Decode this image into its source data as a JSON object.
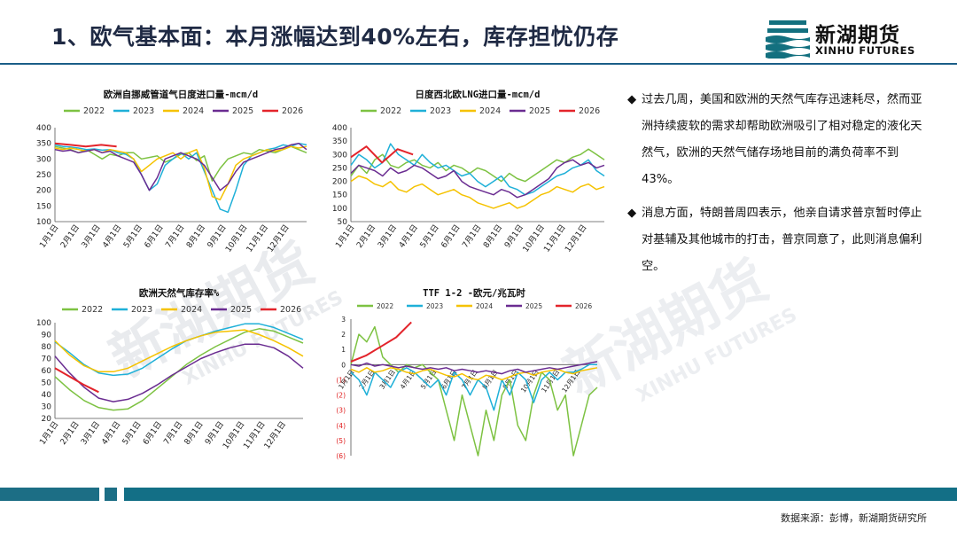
{
  "header": {
    "title": "1、欧气基本面：本月涨幅达到40%左右，库存担忧仍存"
  },
  "logo": {
    "name": "新湖期货",
    "en": "XINHU FUTURES"
  },
  "watermark": {
    "cn": "新湖期货",
    "en": "XINHU FUTURES"
  },
  "side_text": [
    "过去几周，美国和欧洲的天然气库存迅速耗尽，然而亚洲持续疲软的需求却帮助欧洲吸引了相对稳定的液化天然气，欧洲的天然气储存场地目前的满负荷率不到43%。",
    "消息方面，特朗普周四表示，他亲自请求普京暂时停止对基辅及其他城市的打击，普京同意了，此则消息偏利空。"
  ],
  "footer": {
    "source": "数据来源：彭博，新湖期货研究所"
  },
  "colors": {
    "2022": "#7dc242",
    "2023": "#1fb0d8",
    "2024": "#f5c200",
    "2025": "#6a2c91",
    "2026": "#e3242b"
  },
  "chart_data": [
    {
      "type": "line",
      "title": "欧洲自挪威管道气日度进口量-mcm/d",
      "legend": [
        "2022",
        "2023",
        "2024",
        "2025",
        "2026"
      ],
      "xticks": [
        "1月1日",
        "2月1日",
        "3月1日",
        "4月1日",
        "5月1日",
        "6月1日",
        "7月1日",
        "8月1日",
        "9月1日",
        "10月1日",
        "11月1日",
        "12月1日"
      ],
      "yticks": [
        "100",
        "150",
        "200",
        "250",
        "300",
        "350",
        "400"
      ],
      "ylim": [
        100,
        400
      ],
      "series": [
        {
          "name": "2022",
          "values": [
            340,
            335,
            330,
            320,
            330,
            315,
            300,
            315,
            310,
            320,
            320,
            300,
            305,
            310,
            290,
            300,
            315,
            320,
            295,
            310,
            230,
            270,
            300,
            310,
            320,
            315,
            330,
            325,
            320,
            330,
            340,
            330,
            320
          ]
        },
        {
          "name": "2023",
          "values": [
            345,
            340,
            338,
            335,
            330,
            332,
            328,
            330,
            320,
            315,
            300,
            250,
            200,
            220,
            280,
            300,
            320,
            300,
            320,
            260,
            200,
            140,
            130,
            200,
            280,
            310,
            320,
            330,
            335,
            345,
            340,
            350,
            345
          ]
        },
        {
          "name": "2024",
          "values": [
            335,
            330,
            335,
            330,
            325,
            330,
            320,
            330,
            325,
            320,
            300,
            260,
            280,
            300,
            310,
            320,
            300,
            320,
            330,
            270,
            180,
            170,
            220,
            280,
            300,
            310,
            320,
            330,
            325,
            330,
            340,
            335,
            340
          ]
        },
        {
          "name": "2025",
          "values": [
            330,
            325,
            328,
            320,
            325,
            330,
            320,
            325,
            310,
            300,
            290,
            250,
            200,
            240,
            300,
            310,
            320,
            310,
            300,
            280,
            240,
            200,
            220,
            260,
            290,
            300,
            310,
            320,
            330,
            335,
            345,
            350,
            330
          ]
        },
        {
          "name": "2026",
          "values": [
            350,
            345,
            340,
            345,
            340
          ]
        }
      ]
    },
    {
      "type": "line",
      "title": "日度西北欧LNG进口量-mcm/d",
      "legend": [
        "2022",
        "2023",
        "2024",
        "2025",
        "2026"
      ],
      "xticks": [
        "1月1日",
        "2月1日",
        "3月1日",
        "4月1日",
        "5月1日",
        "6月1日",
        "7月1日",
        "8月1日",
        "9月1日",
        "10月1日",
        "11月1日",
        "12月1日"
      ],
      "yticks": [
        "50",
        "100",
        "150",
        "200",
        "250",
        "300",
        "350",
        "400"
      ],
      "ylim": [
        50,
        400
      ],
      "series": [
        {
          "name": "2022",
          "values": [
            220,
            260,
            230,
            280,
            300,
            260,
            250,
            270,
            280,
            260,
            250,
            270,
            240,
            260,
            250,
            230,
            250,
            240,
            220,
            200,
            230,
            210,
            200,
            220,
            240,
            260,
            280,
            270,
            290,
            300,
            320,
            300,
            280
          ]
        },
        {
          "name": "2023",
          "values": [
            260,
            300,
            280,
            250,
            270,
            340,
            300,
            280,
            260,
            300,
            270,
            250,
            260,
            240,
            220,
            230,
            200,
            180,
            200,
            220,
            180,
            170,
            150,
            160,
            180,
            200,
            220,
            230,
            250,
            260,
            280,
            240,
            220
          ]
        },
        {
          "name": "2024",
          "values": [
            200,
            220,
            210,
            190,
            180,
            200,
            170,
            160,
            180,
            190,
            170,
            150,
            160,
            170,
            150,
            140,
            120,
            110,
            100,
            110,
            120,
            100,
            110,
            130,
            150,
            160,
            180,
            170,
            160,
            180,
            190,
            170,
            180
          ]
        },
        {
          "name": "2025",
          "values": [
            230,
            260,
            250,
            240,
            220,
            250,
            230,
            240,
            260,
            250,
            230,
            210,
            220,
            240,
            200,
            180,
            170,
            160,
            150,
            170,
            160,
            140,
            150,
            170,
            190,
            210,
            250,
            270,
            280,
            260,
            270,
            250,
            260
          ]
        },
        {
          "name": "2026",
          "values": [
            290,
            330,
            270,
            320,
            300
          ]
        }
      ]
    },
    {
      "type": "line",
      "title": "欧洲天然气库存率%",
      "legend": [
        "2022",
        "2023",
        "2024",
        "2025",
        "2026"
      ],
      "xticks": [
        "1月1日",
        "2月1日",
        "3月1日",
        "4月1日",
        "5月1日",
        "6月1日",
        "7月1日",
        "8月1日",
        "9月1日",
        "10月1日",
        "11月1日",
        "12月1日"
      ],
      "yticks": [
        "20",
        "30",
        "40",
        "50",
        "60",
        "70",
        "80",
        "90",
        "100"
      ],
      "ylim": [
        20,
        100
      ],
      "series": [
        {
          "name": "2022",
          "values": [
            55,
            44,
            35,
            29,
            27,
            28,
            35,
            45,
            55,
            65,
            73,
            80,
            86,
            92,
            95,
            93,
            88,
            83
          ]
        },
        {
          "name": "2023",
          "values": [
            84,
            75,
            65,
            58,
            56,
            57,
            62,
            70,
            78,
            85,
            89,
            93,
            96,
            99,
            99,
            96,
            91,
            86
          ]
        },
        {
          "name": "2024",
          "values": [
            85,
            73,
            64,
            59,
            59,
            62,
            68,
            74,
            80,
            85,
            89,
            92,
            93,
            94,
            90,
            85,
            79,
            72
          ]
        },
        {
          "name": "2025",
          "values": [
            72,
            58,
            46,
            37,
            34,
            36,
            41,
            48,
            56,
            63,
            70,
            75,
            79,
            82,
            82,
            79,
            72,
            62
          ]
        },
        {
          "name": "2026",
          "values": [
            62,
            55,
            48,
            42
          ]
        }
      ]
    },
    {
      "type": "line",
      "title": "TTF 1-2 -欧元/兆瓦时",
      "legend": [
        "2022",
        "2023",
        "2024",
        "2025",
        "2026"
      ],
      "xticks": [
        "1月1日",
        "2月1日",
        "3月1日",
        "4月1日",
        "5月1日",
        "6月1日",
        "7月1日",
        "8月1日",
        "9月1日",
        "10月1日",
        "11月1日",
        "12月1日"
      ],
      "yticks": [
        "3",
        "2",
        "1",
        "0",
        "(1)",
        "(2)",
        "(3)",
        "(4)",
        "(5)",
        "(6)"
      ],
      "ylim": [
        -6,
        3
      ],
      "series": [
        {
          "name": "2022",
          "values": [
            0,
            2,
            1.5,
            2.5,
            0.5,
            0,
            -0.5,
            0,
            -0.2,
            0,
            -0.5,
            -1,
            -3,
            -5,
            -2,
            -4,
            -6,
            -3,
            -5,
            -2,
            -1,
            -4,
            -5,
            -2,
            -0.5,
            -1,
            -3,
            -2,
            -6,
            -4,
            -2,
            -1.5
          ]
        },
        {
          "name": "2023",
          "values": [
            -0.5,
            -1,
            -2,
            -0.5,
            -1,
            -1.5,
            -0.5,
            -0.2,
            -0.5,
            -1,
            -1.5,
            -1,
            -2,
            -0.5,
            -1,
            -2,
            -1,
            -1.5,
            -3,
            -1,
            -2,
            -0.5,
            -1,
            -2.5,
            -1,
            -0.5,
            -1,
            -0.5,
            -0.5,
            -0.3,
            0,
            0
          ]
        },
        {
          "name": "2024",
          "values": [
            -0.3,
            -0.5,
            -0.2,
            -0.5,
            -0.4,
            -0.2,
            -0.3,
            -0.5,
            -0.6,
            -0.4,
            -0.3,
            -0.5,
            -0.7,
            -0.8,
            -0.6,
            -0.9,
            -1,
            -0.7,
            -0.8,
            -1,
            -0.8,
            -0.6,
            -0.5,
            -0.7,
            -0.5,
            -0.4,
            -0.3,
            -0.5,
            -0.6,
            -0.4,
            -0.3,
            -0.2
          ]
        },
        {
          "name": "2025",
          "values": [
            0,
            -0.1,
            0.1,
            -0.1,
            0,
            -0.1,
            -0.2,
            -0.1,
            -0.2,
            -0.3,
            -0.2,
            -0.3,
            -0.2,
            -0.4,
            -0.3,
            -0.4,
            -0.5,
            -0.4,
            -0.5,
            -0.6,
            -0.4,
            -0.3,
            -0.5,
            -0.4,
            -0.3,
            -0.2,
            -0.3,
            -0.2,
            -0.1,
            0,
            0.1,
            0.2
          ]
        },
        {
          "name": "2026",
          "values": [
            0.2,
            0.6,
            1.2,
            1.8,
            2.8
          ]
        }
      ]
    }
  ]
}
